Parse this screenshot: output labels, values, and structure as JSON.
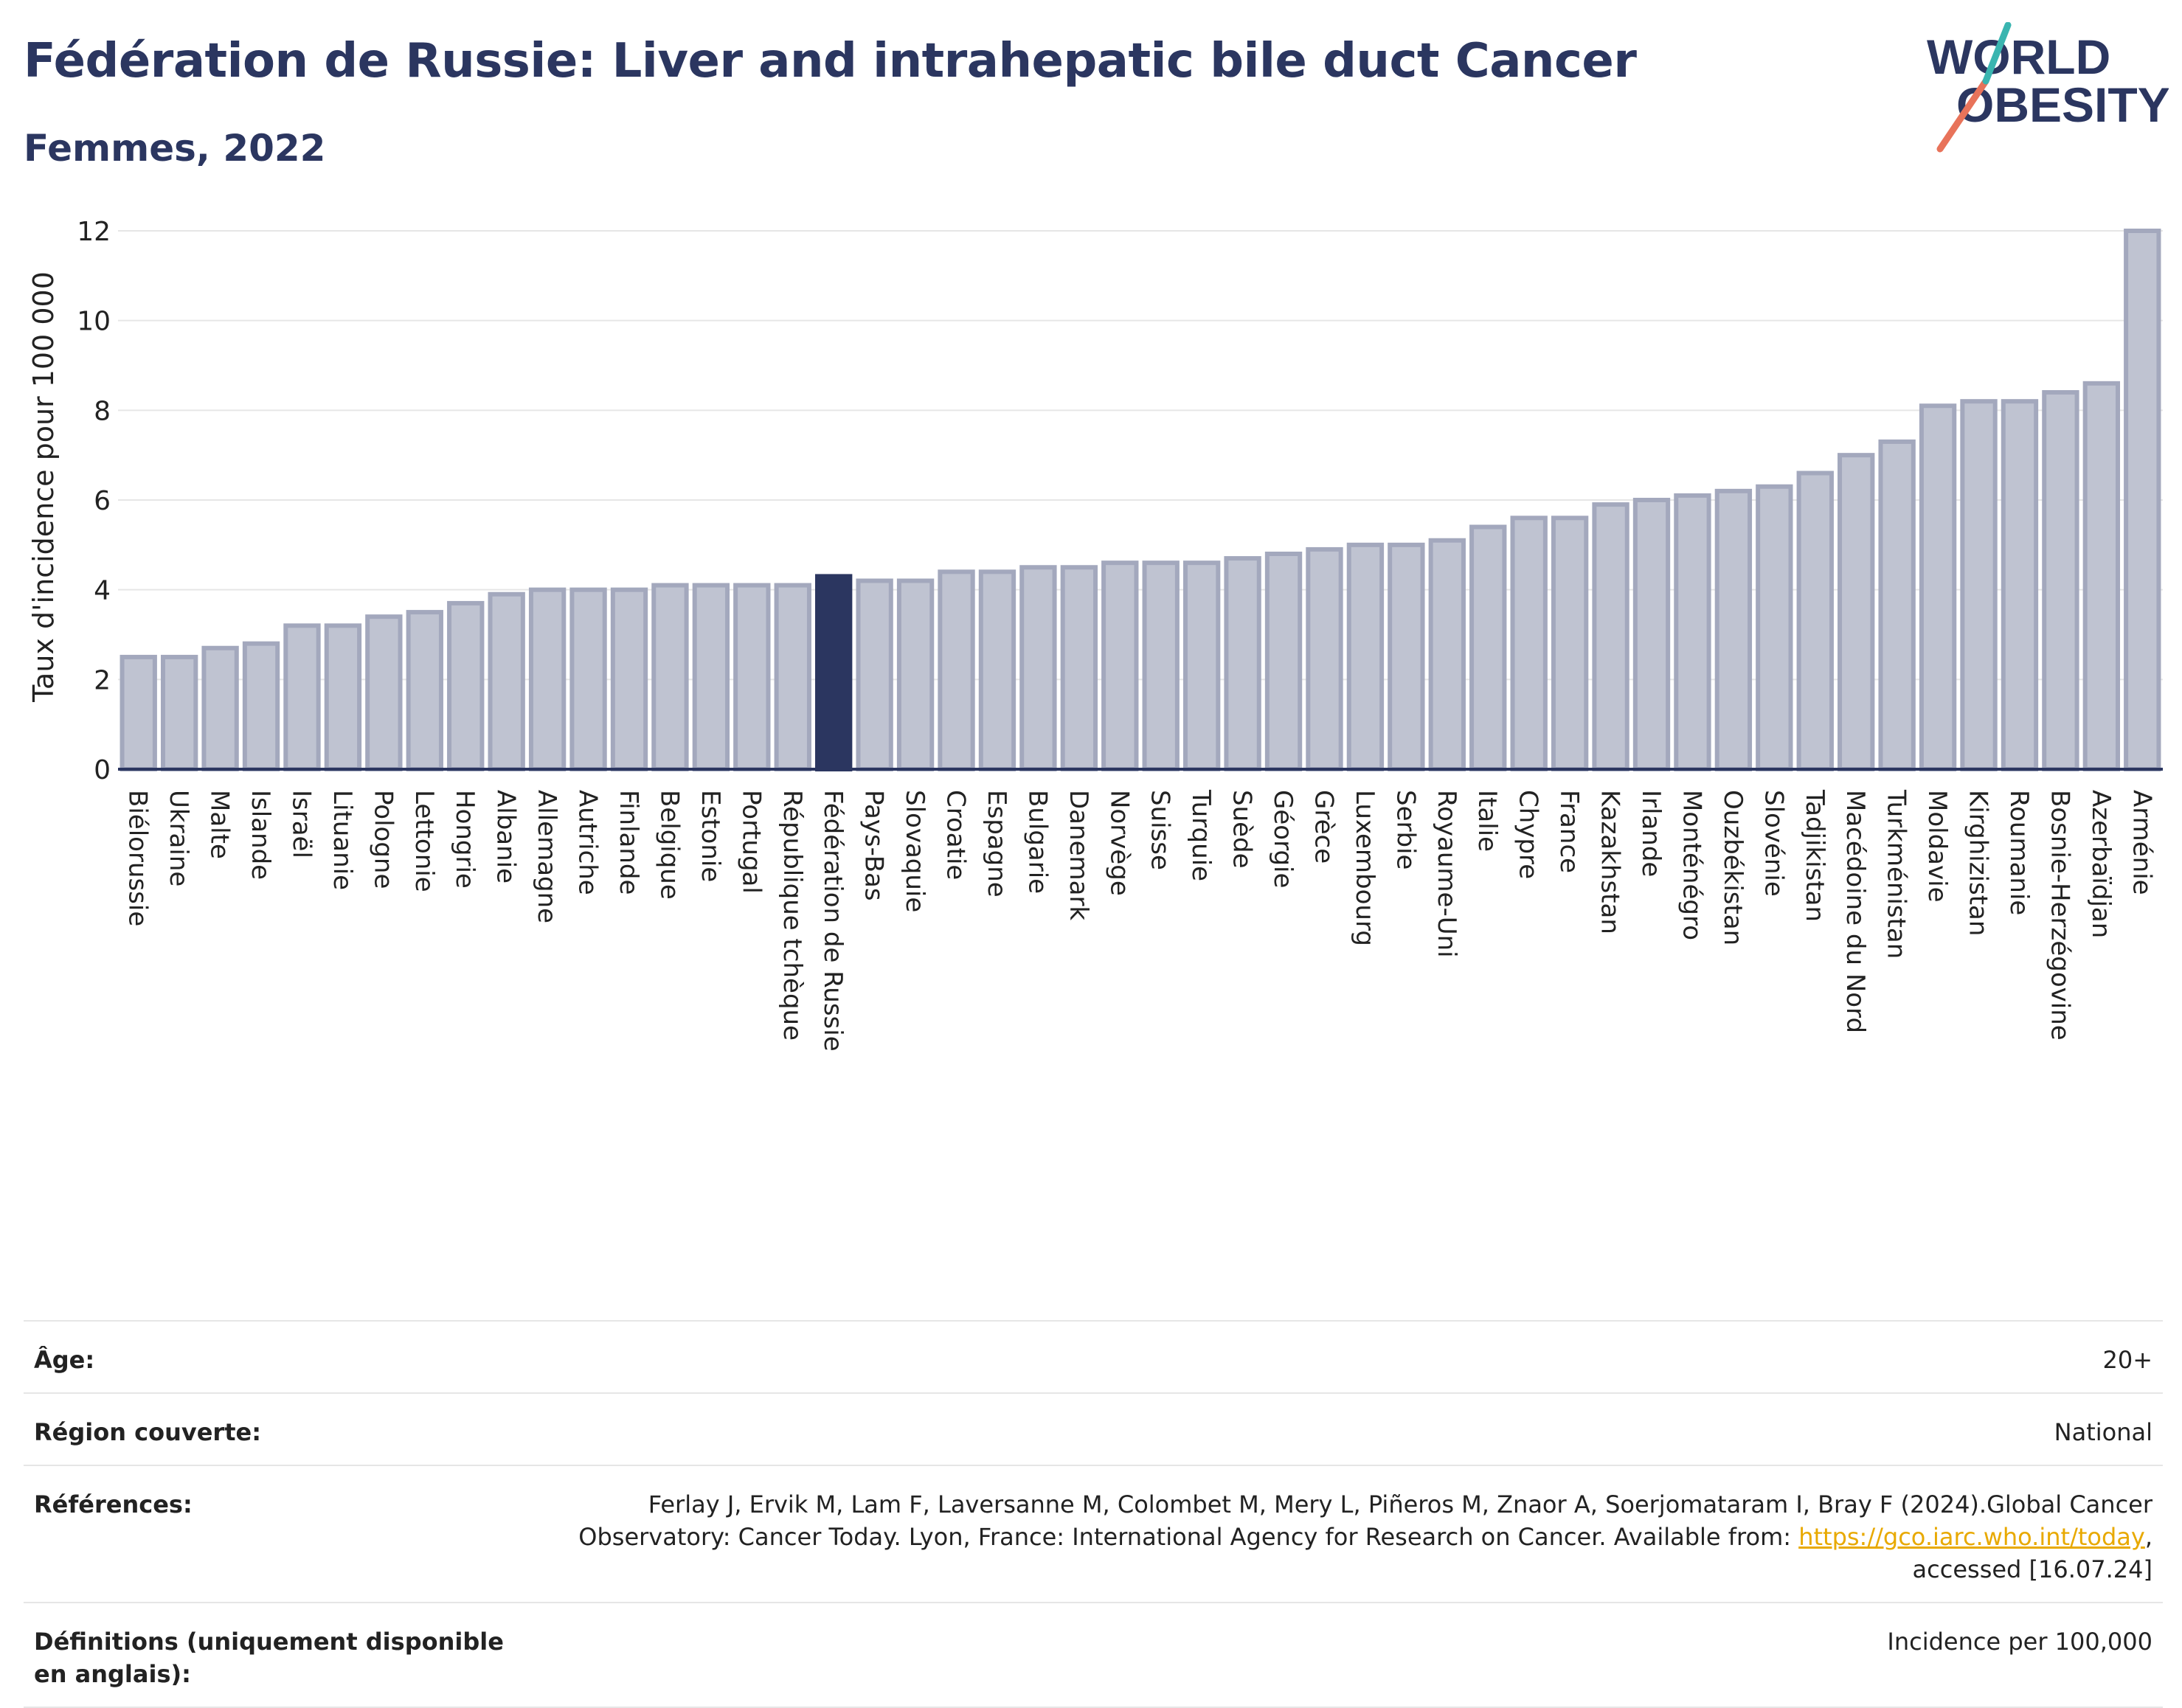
{
  "header": {
    "title": "Fédération de Russie: Liver and intrahepatic bile duct Cancer",
    "subtitle": "Femmes, 2022",
    "logo_line1": "WORLD",
    "logo_line2": "OBESITY"
  },
  "colors": {
    "bar": "#bfc3d1",
    "bar_stroke": "#a3a8bd",
    "highlight": "#2b3660",
    "grid": "#e6e6e6",
    "axis": "#2b3660",
    "logo_text": "#2b3660",
    "logo_teal": "#3ab5b0",
    "logo_coral": "#e8735a",
    "link": "#e8a900"
  },
  "chart_data": {
    "type": "bar",
    "title": "Fédération de Russie: Liver and intrahepatic bile duct Cancer",
    "subtitle": "Femmes, 2022",
    "ylabel": "Taux d'incidence pour 100 000",
    "xlabel": "",
    "ylim": [
      0,
      12
    ],
    "yticks": [
      0,
      2,
      4,
      6,
      8,
      10,
      12
    ],
    "grid": true,
    "highlight": "Fédération de Russie",
    "categories": [
      "Biélorussie",
      "Ukraine",
      "Malte",
      "Islande",
      "Israël",
      "Lituanie",
      "Pologne",
      "Lettonie",
      "Hongrie",
      "Albanie",
      "Allemagne",
      "Autriche",
      "Finlande",
      "Belgique",
      "Estonie",
      "Portugal",
      "République tchèque",
      "Fédération de Russie",
      "Pays-Bas",
      "Slovaquie",
      "Croatie",
      "Espagne",
      "Bulgarie",
      "Danemark",
      "Norvège",
      "Suisse",
      "Turquie",
      "Suède",
      "Géorgie",
      "Grèce",
      "Luxembourg",
      "Serbie",
      "Royaume-Uni",
      "Italie",
      "Chypre",
      "France",
      "Kazakhstan",
      "Irlande",
      "Monténégro",
      "Ouzbékistan",
      "Slovénie",
      "Tadjikistan",
      "Macédoine du Nord",
      "Turkménistan",
      "Moldavie",
      "Kirghizistan",
      "Roumanie",
      "Bosnie-Herzégovine",
      "Azerbaïdjan",
      "Arménie"
    ],
    "values": [
      2.5,
      2.5,
      2.7,
      2.8,
      3.2,
      3.2,
      3.4,
      3.5,
      3.7,
      3.9,
      4.0,
      4.0,
      4.0,
      4.1,
      4.1,
      4.1,
      4.1,
      4.3,
      4.2,
      4.2,
      4.4,
      4.4,
      4.5,
      4.5,
      4.6,
      4.6,
      4.6,
      4.7,
      4.8,
      4.9,
      5.0,
      5.0,
      5.1,
      5.4,
      5.6,
      5.6,
      5.9,
      6.0,
      6.1,
      6.2,
      6.3,
      6.6,
      7.0,
      7.3,
      8.1,
      8.2,
      8.2,
      8.4,
      8.6,
      12.0
    ]
  },
  "info": {
    "age_label": "Âge:",
    "age_value": "20+",
    "region_label": "Région couverte:",
    "region_value": "National",
    "ref_label": "Références:",
    "ref_text_1": "Ferlay J, Ervik M, Lam F, Laversanne M, Colombet M, Mery L, Piñeros M, Znaor A, Soerjomataram I, Bray F (2024).Global Cancer",
    "ref_text_2": "Observatory: Cancer Today. Lyon, France: International Agency for Research on Cancer. Available from: ",
    "ref_link": "https://gco.iarc.who.int/today",
    "ref_text_3": ",",
    "ref_text_4": "accessed [16.07.24]",
    "def_label": "Définitions (uniquement disponible en anglais):",
    "def_value": "Incidence per 100,000"
  }
}
